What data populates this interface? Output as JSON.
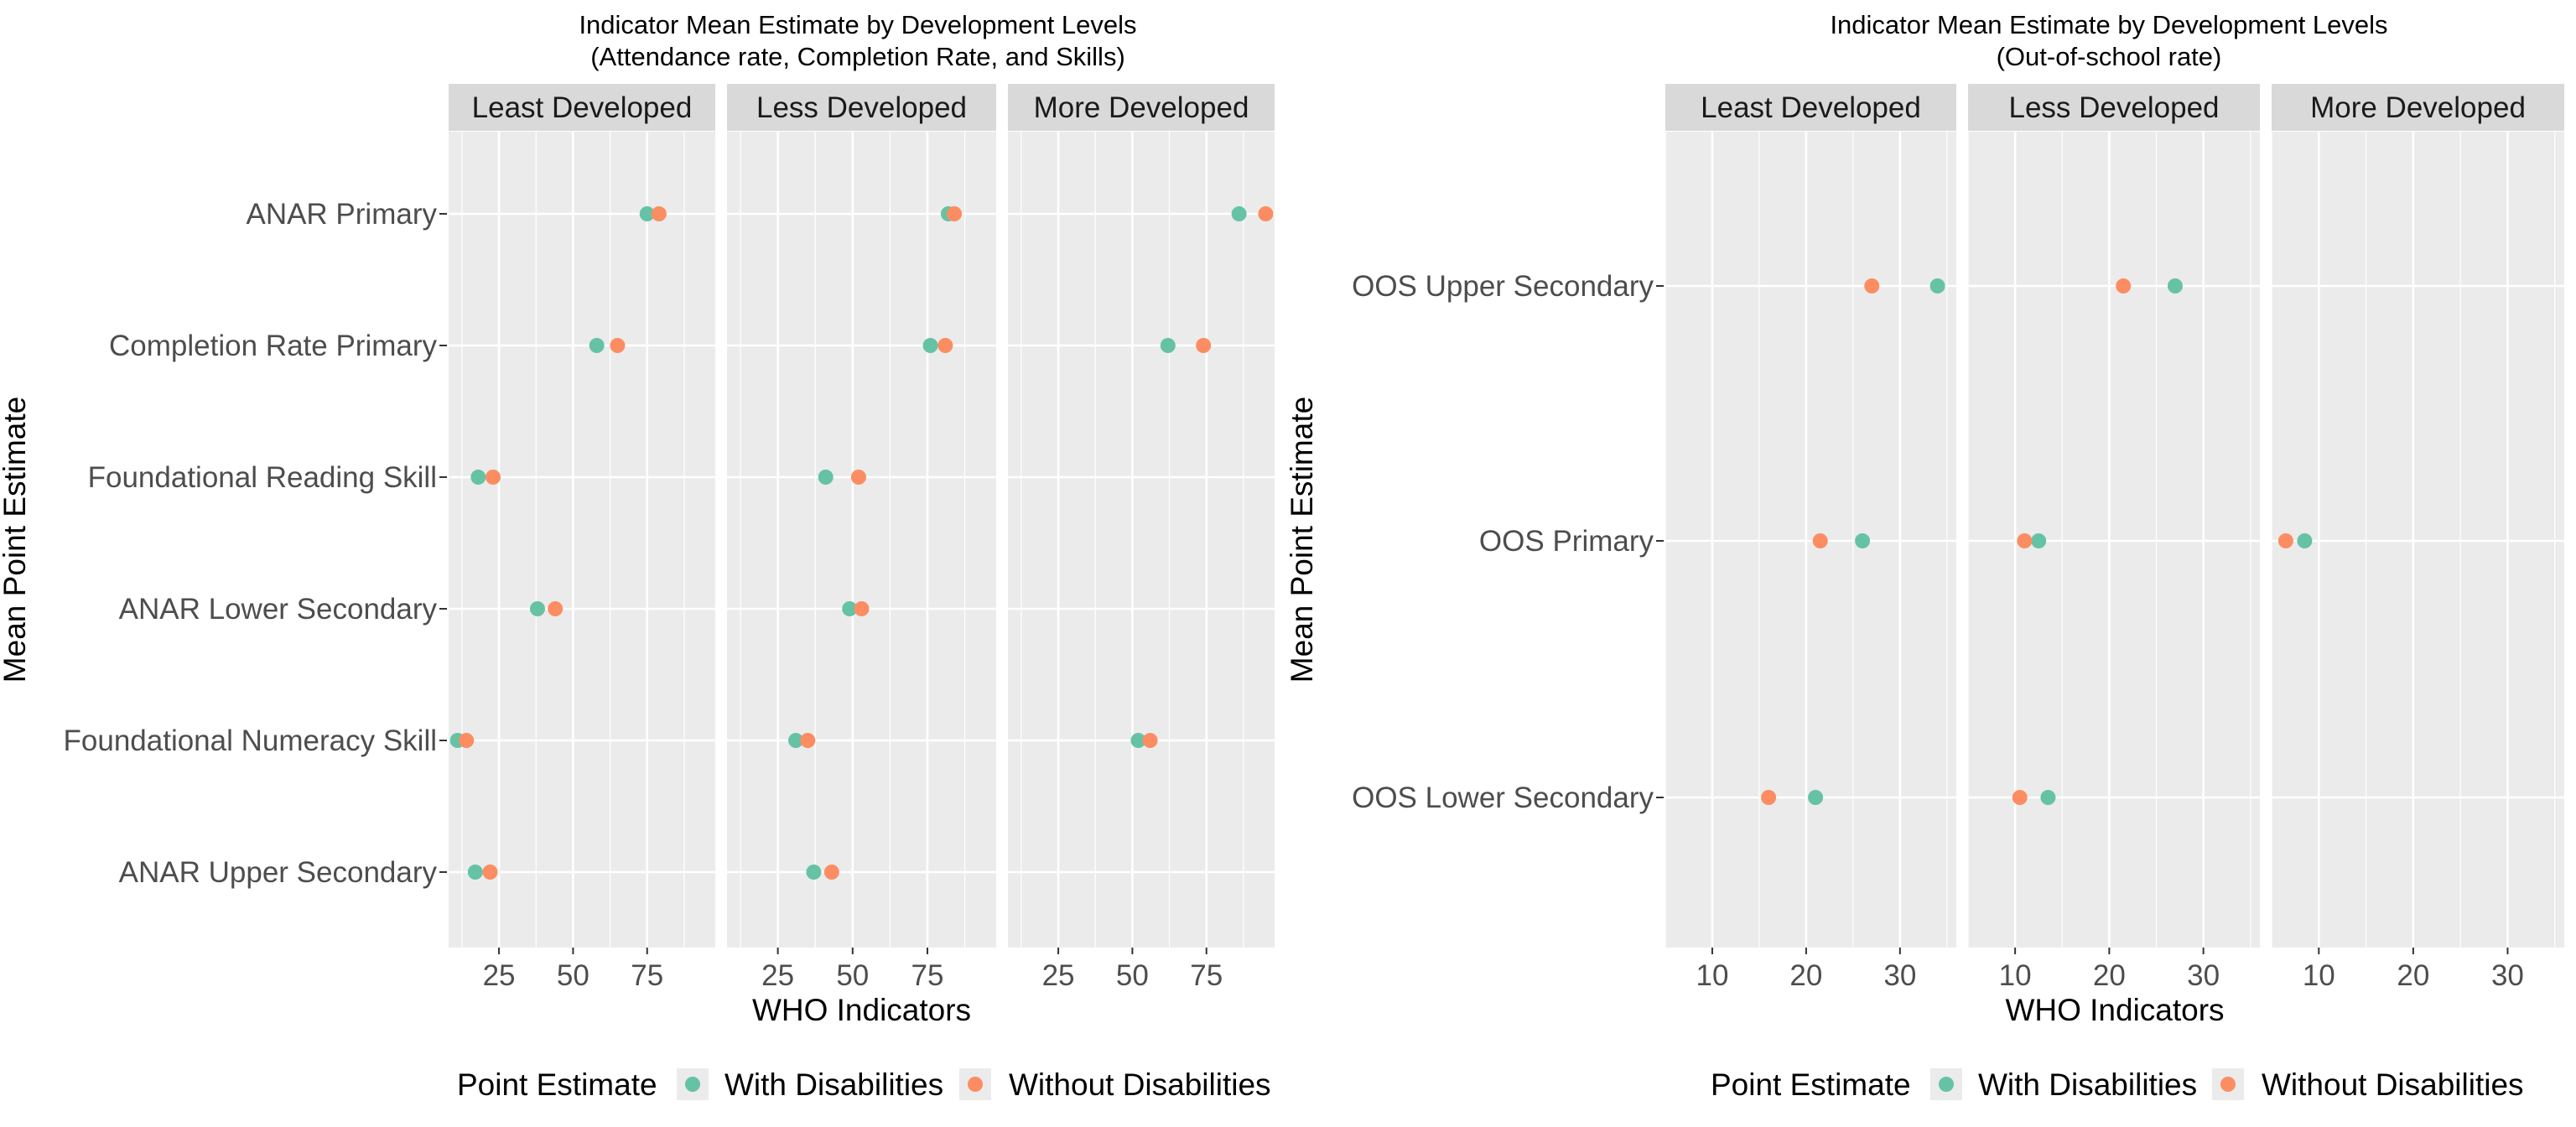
{
  "colors": {
    "with": "#66C2A5",
    "without": "#FC8D62",
    "panel_bg": "#EBEBEB",
    "strip_bg": "#D9D9D9",
    "grid": "#FFFFFF"
  },
  "legend": {
    "title": "Point Estimate",
    "with_label": "With Disabilities",
    "without_label": "Without Disabilities"
  },
  "chart_data": [
    {
      "type": "scatter",
      "title": "Indicator Mean Estimate by Development Levels",
      "subtitle": "(Attendance rate, Completion Rate, and Skills)",
      "xlabel": "WHO Indicators",
      "ylabel": "Mean Point Estimate",
      "xlim": [
        8,
        98
      ],
      "xticks": [
        25,
        50,
        75
      ],
      "facets": [
        "Least Developed",
        "Less Developed",
        "More Developed"
      ],
      "categories": [
        "ANAR Primary",
        "Completion Rate Primary",
        "Foundational Reading Skill",
        "ANAR Lower Secondary",
        "Foundational Numeracy Skill",
        "ANAR Upper Secondary"
      ],
      "series": [
        {
          "name": "With Disabilities",
          "values": [
            [
              75,
              58,
              18,
              38,
              11,
              17
            ],
            [
              82,
              76,
              41,
              49,
              31,
              37
            ],
            [
              86,
              62,
              null,
              null,
              52,
              null
            ]
          ]
        },
        {
          "name": "Without Disabilities",
          "values": [
            [
              79,
              65,
              23,
              44,
              14,
              22
            ],
            [
              84,
              81,
              52,
              53,
              35,
              43
            ],
            [
              95,
              74,
              null,
              null,
              56,
              null
            ]
          ]
        }
      ],
      "legend": "bottom",
      "grid": true
    },
    {
      "type": "scatter",
      "title": "Indicator Mean Estimate by Development Levels",
      "subtitle": "(Out-of-school rate)",
      "xlabel": "WHO Indicators",
      "ylabel": "Mean Point Estimate",
      "xlim": [
        5,
        36
      ],
      "xticks": [
        10,
        20,
        30
      ],
      "facets": [
        "Least Developed",
        "Less Developed",
        "More Developed"
      ],
      "categories": [
        "OOS Upper Secondary",
        "OOS Primary",
        "OOS Lower Secondary"
      ],
      "series": [
        {
          "name": "With Disabilities",
          "values": [
            [
              34,
              26,
              21
            ],
            [
              27,
              12.5,
              13.5
            ],
            [
              null,
              8.5,
              null
            ]
          ]
        },
        {
          "name": "Without Disabilities",
          "values": [
            [
              27,
              21.5,
              16
            ],
            [
              21.5,
              11,
              10.5
            ],
            [
              null,
              6.5,
              null
            ]
          ]
        }
      ],
      "legend": "bottom",
      "grid": true
    }
  ]
}
